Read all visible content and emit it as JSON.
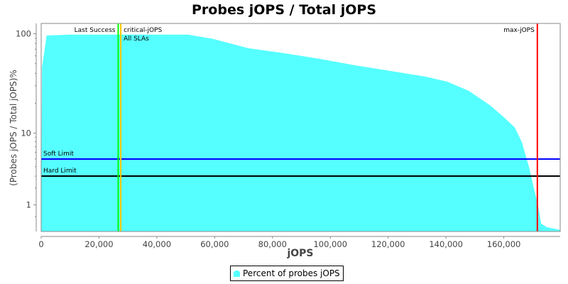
{
  "chart_data": {
    "type": "area",
    "title": "Probes jOPS / Total jOPS",
    "xlabel": "jOPS",
    "ylabel": "(Probes jOPS / Total jOPS)%",
    "xlim": [
      0,
      179500
    ],
    "ylim": [
      0.03,
      127
    ],
    "yscale": "log",
    "grid": false,
    "legend_position": "bottom",
    "x_ticks": [
      0,
      20000,
      40000,
      60000,
      80000,
      100000,
      120000,
      140000,
      160000
    ],
    "x_tick_labels": [
      "0",
      "20,000",
      "40,000",
      "60,000",
      "80,000",
      "100,000",
      "120,000",
      "140,000",
      "160,000"
    ],
    "y_ticks": [
      1,
      10,
      100
    ],
    "y_tick_labels": [
      "1",
      "10",
      "100"
    ],
    "series": [
      {
        "name": "Percent of probes jOPS",
        "color": "#55ffff",
        "x": [
          0,
          300,
          1900,
          10000,
          50700,
          59400,
          71600,
          83900,
          96100,
          108400,
          120700,
          133000,
          140400,
          147800,
          155100,
          160000,
          163800,
          166200,
          168700,
          170400,
          171900,
          172900,
          174800,
          179500
        ],
        "y": [
          0.03,
          45.9,
          96,
          98,
          98,
          88.7,
          71.6,
          63.8,
          56,
          48.2,
          42.3,
          37,
          33,
          26.7,
          19.2,
          14.5,
          11.4,
          8.0,
          4.0,
          2.0,
          0.95,
          0.26,
          0.15,
          0.07
        ]
      }
    ],
    "horizontal_markers": [
      {
        "label": "Soft Limit",
        "value": 5,
        "color": "#0000ff"
      },
      {
        "label": "Hard Limit",
        "value": 3,
        "color": "#000000"
      }
    ],
    "vertical_markers": [
      {
        "label": "Last Success",
        "value": 26640,
        "color": "#00ff00"
      },
      {
        "label": "critical-jOPS",
        "value": 27520,
        "color": "#ffc800"
      },
      {
        "label": "All SLAs",
        "value": 27520,
        "color": "#ffc800"
      },
      {
        "label": "max-jOPS",
        "value": 171600,
        "color": "#ff0000"
      }
    ]
  }
}
